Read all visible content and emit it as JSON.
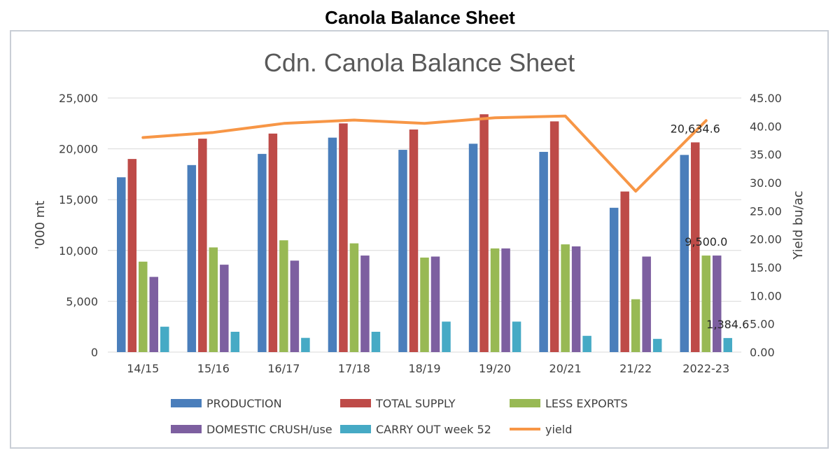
{
  "page": {
    "title": "Canola Balance Sheet"
  },
  "colors": {
    "production": "#4a7ebb",
    "total_supply": "#be4b48",
    "less_exports": "#98b954",
    "domestic_crush": "#7d5fa0",
    "carry_out": "#46aac5",
    "yield": "#f79646",
    "grid": "#d9d9d9",
    "axis_text": "#404040"
  },
  "chart_data": {
    "type": "bar",
    "title": "Cdn. Canola Balance Sheet",
    "xlabel": "",
    "ylabel": "'000 mt",
    "y2label": "Yield bu/ac",
    "ylim": [
      0,
      25000
    ],
    "y2lim": [
      0,
      45
    ],
    "grid": true,
    "legend_position": "bottom",
    "yticks": [
      "0",
      "5,000",
      "10,000",
      "15,000",
      "20,000",
      "25,000"
    ],
    "y2ticks": [
      "0.00",
      "5.00",
      "10.00",
      "15.00",
      "20.00",
      "25.00",
      "30.00",
      "35.00",
      "40.00",
      "45.00"
    ],
    "categories": [
      "14/15",
      "15/16",
      "16/17",
      "17/18",
      "18/19",
      "19/20",
      "20/21",
      "21/22",
      "2022-23"
    ],
    "series": [
      {
        "name": "PRODUCTION",
        "key": "production",
        "values": [
          17200,
          18400,
          19500,
          21100,
          19900,
          20500,
          19700,
          14200,
          19400
        ]
      },
      {
        "name": "TOTAL SUPPLY",
        "key": "total_supply",
        "values": [
          19000,
          21000,
          21500,
          22500,
          21900,
          23400,
          22700,
          15800,
          20634.6
        ]
      },
      {
        "name": "LESS EXPORTS",
        "key": "less_exports",
        "values": [
          8900,
          10300,
          11000,
          10700,
          9300,
          10200,
          10600,
          5200,
          9500
        ]
      },
      {
        "name": "DOMESTIC CRUSH/use",
        "key": "domestic_crush",
        "values": [
          7400,
          8600,
          9000,
          9500,
          9400,
          10200,
          10400,
          9400,
          9500
        ]
      },
      {
        "name": "CARRY OUT week 52",
        "key": "carry_out",
        "values": [
          2500,
          2000,
          1400,
          2000,
          3000,
          3000,
          1600,
          1300,
          1384.6
        ]
      }
    ],
    "line_series": {
      "name": "yield",
      "key": "yield",
      "axis": "secondary",
      "values": [
        38.0,
        38.9,
        40.5,
        41.1,
        40.5,
        41.5,
        41.8,
        28.5,
        41.0
      ]
    },
    "annotations": [
      {
        "text": "20,634.6",
        "series": "TOTAL SUPPLY",
        "category": "2022-23"
      },
      {
        "text": "9,500.0",
        "series": "LESS EXPORTS",
        "category": "2022-23"
      },
      {
        "text": "1,384.6",
        "series": "CARRY OUT week 52",
        "category": "2022-23"
      }
    ]
  }
}
